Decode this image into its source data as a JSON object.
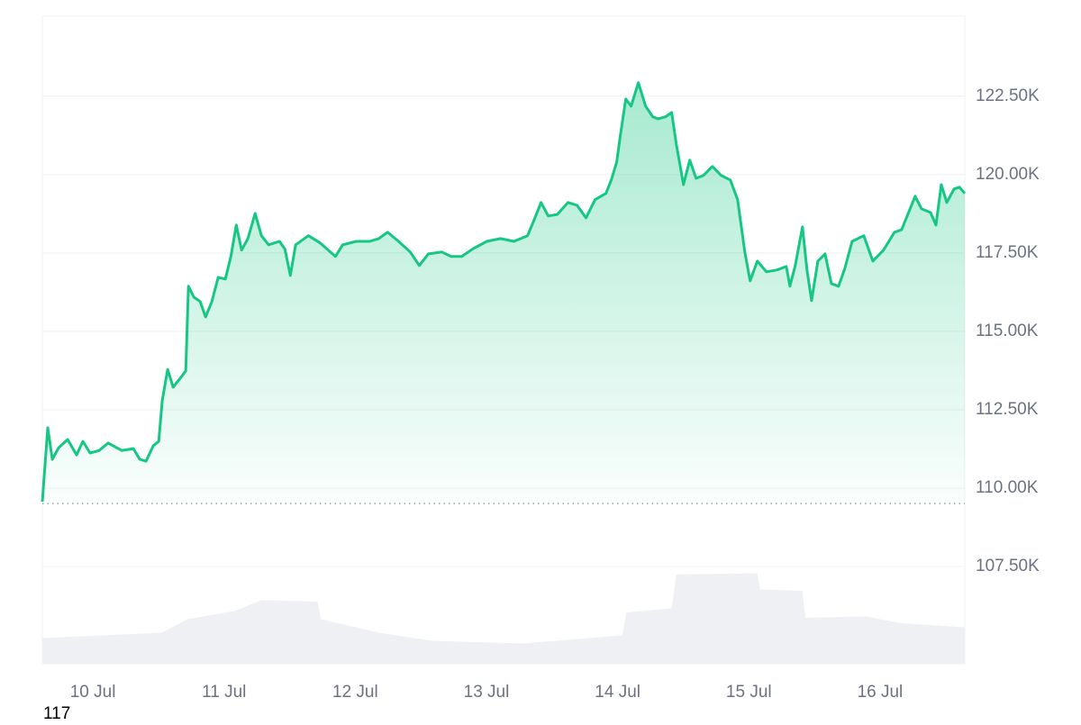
{
  "chart_data": {
    "type": "area",
    "x": [
      9.615,
      9.656,
      9.691,
      9.739,
      9.808,
      9.876,
      9.924,
      9.979,
      10.048,
      10.117,
      10.22,
      10.309,
      10.357,
      10.405,
      10.46,
      10.502,
      10.529,
      10.57,
      10.612,
      10.667,
      10.708,
      10.729,
      10.77,
      10.818,
      10.859,
      10.907,
      10.955,
      11.01,
      11.052,
      11.093,
      11.134,
      11.182,
      11.237,
      11.285,
      11.34,
      11.423,
      11.464,
      11.505,
      11.546,
      11.643,
      11.732,
      11.849,
      11.904,
      12.007,
      12.11,
      12.179,
      12.247,
      12.33,
      12.419,
      12.488,
      12.557,
      12.66,
      12.729,
      12.811,
      12.9,
      13.003,
      13.107,
      13.21,
      13.313,
      13.361,
      13.416,
      13.471,
      13.54,
      13.622,
      13.691,
      13.759,
      13.828,
      13.911,
      13.952,
      13.993,
      14.021,
      14.062,
      14.103,
      14.158,
      14.213,
      14.268,
      14.309,
      14.364,
      14.412,
      14.447,
      14.502,
      14.55,
      14.598,
      14.653,
      14.722,
      14.79,
      14.859,
      14.914,
      14.969,
      15.01,
      15.065,
      15.134,
      15.216,
      15.285,
      15.313,
      15.354,
      15.409,
      15.443,
      15.478,
      15.526,
      15.581,
      15.629,
      15.684,
      15.732,
      15.787,
      15.876,
      15.945,
      16.027,
      16.11,
      16.165,
      16.22,
      16.268,
      16.316,
      16.385,
      16.426,
      16.467,
      16.509,
      16.564,
      16.605,
      16.646
    ],
    "values": [
      109570,
      111925,
      110920,
      111290,
      111550,
      111060,
      111490,
      111120,
      111200,
      111440,
      111200,
      111260,
      110920,
      110860,
      111350,
      111490,
      112790,
      113790,
      113220,
      113510,
      113740,
      116440,
      116090,
      115950,
      115460,
      115950,
      116720,
      116670,
      117390,
      118390,
      117590,
      117960,
      118760,
      118050,
      117760,
      117870,
      117620,
      116780,
      117760,
      118050,
      117820,
      117390,
      117760,
      117870,
      117870,
      117960,
      118160,
      117870,
      117530,
      117100,
      117470,
      117530,
      117390,
      117390,
      117640,
      117870,
      117960,
      117870,
      118050,
      118530,
      119110,
      118680,
      118730,
      119110,
      119020,
      118620,
      119200,
      119400,
      119830,
      120400,
      121260,
      122410,
      122180,
      122930,
      122180,
      121840,
      121780,
      121840,
      121980,
      120980,
      119680,
      120460,
      119880,
      119970,
      120260,
      119970,
      119830,
      119200,
      117530,
      116610,
      117240,
      116900,
      116960,
      117070,
      116440,
      117100,
      118330,
      116960,
      115980,
      117240,
      117470,
      116520,
      116440,
      117010,
      117870,
      118050,
      117240,
      117590,
      118160,
      118240,
      118820,
      119310,
      118910,
      118790,
      118390,
      119680,
      119110,
      119540,
      119600,
      119400
    ],
    "color": "#16c784",
    "baseline": 109510,
    "volume": {
      "x": [
        9.615,
        10.529,
        10.722,
        11.079,
        11.285,
        11.711,
        11.739,
        12.179,
        12.591,
        13.278,
        14.034,
        14.069,
        14.412,
        14.447,
        15.065,
        15.086,
        15.409,
        15.43,
        15.89,
        16.165,
        16.646
      ],
      "values": [
        19,
        23,
        33,
        39,
        47,
        46,
        33,
        23,
        17,
        15,
        21,
        38,
        41,
        66,
        67,
        55,
        54,
        34,
        35,
        30,
        27
      ],
      "ylim": [
        0,
        100
      ],
      "color": "#eef0f3"
    },
    "xlim": [
      9.615,
      16.646
    ],
    "xticks": [
      {
        "value": 10,
        "label": "10 Jul"
      },
      {
        "value": 11,
        "label": "11 Jul"
      },
      {
        "value": 12,
        "label": "12 Jul"
      },
      {
        "value": 13,
        "label": "13 Jul"
      },
      {
        "value": 14,
        "label": "14 Jul"
      },
      {
        "value": 15,
        "label": "15 Jul"
      },
      {
        "value": 16,
        "label": "16 Jul"
      }
    ],
    "ylim": [
      104400,
      125050
    ],
    "yticks": [
      {
        "value": 107500,
        "label": "107.50K"
      },
      {
        "value": 110000,
        "label": "110.00K"
      },
      {
        "value": 112500,
        "label": "112.50K"
      },
      {
        "value": 115000,
        "label": "115.00K"
      },
      {
        "value": 117500,
        "label": "117.50K"
      },
      {
        "value": 120000,
        "label": "120.00K"
      },
      {
        "value": 122500,
        "label": "122.50K"
      }
    ],
    "grid": true,
    "footer_text": "117"
  }
}
